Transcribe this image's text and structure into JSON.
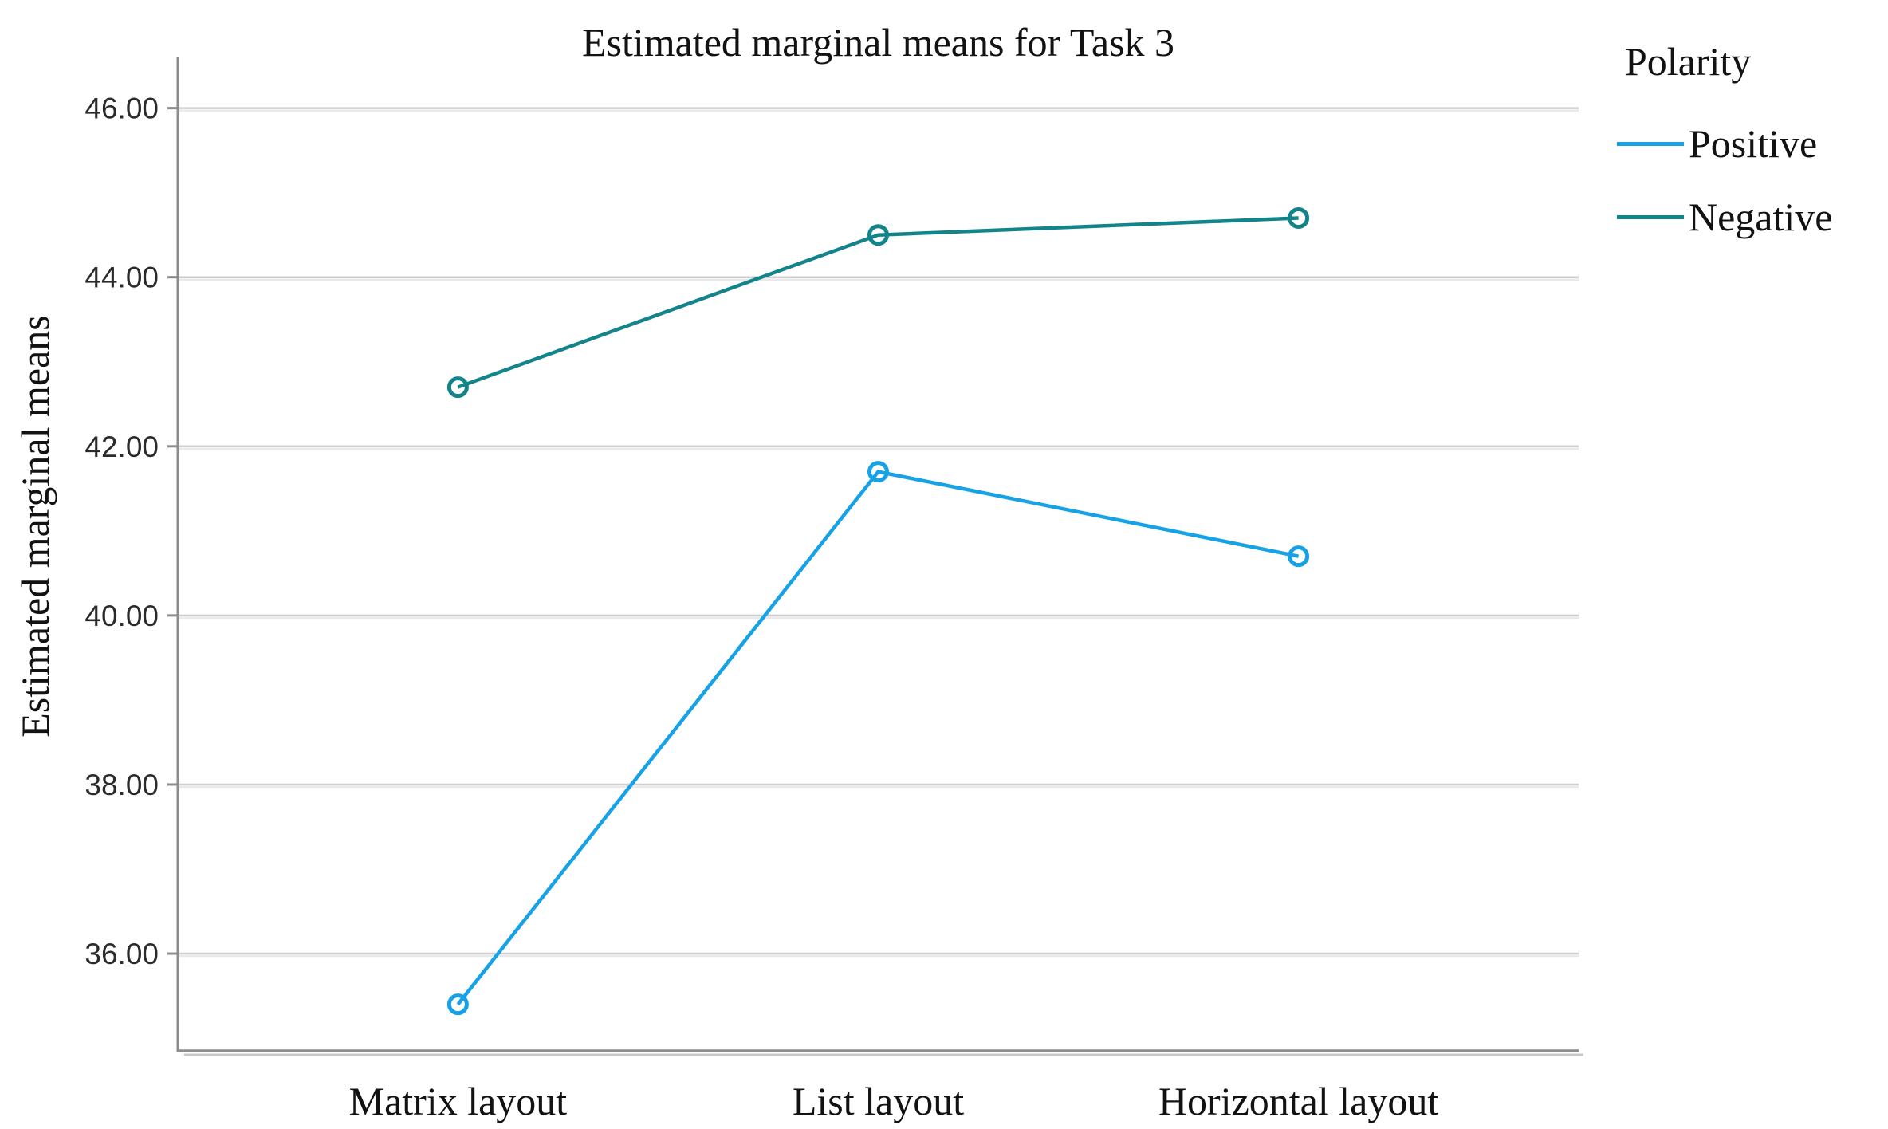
{
  "chart_data": {
    "type": "line",
    "title": "Estimated marginal means for Task 3",
    "ylabel": "Estimated marginal means",
    "xlabel": "",
    "categories": [
      "Matrix layout",
      "List layout",
      "Horizontal layout"
    ],
    "series": [
      {
        "name": "Positive",
        "color": "#17A2E6",
        "values": [
          35.4,
          41.7,
          40.7
        ]
      },
      {
        "name": "Negative",
        "color": "#12848A",
        "values": [
          42.7,
          44.5,
          44.7
        ]
      }
    ],
    "legend": {
      "title": "Polarity",
      "position": "top-right",
      "entries": [
        "Positive",
        "Negative"
      ]
    },
    "ylim": [
      34.85,
      46.6
    ],
    "yticks": [
      36,
      38,
      40,
      42,
      44,
      46
    ],
    "ytick_labels": [
      "36.00",
      "38.00",
      "40.00",
      "42.00",
      "44.00",
      "46.00"
    ],
    "grid": "horizontal",
    "marker": "open-circle"
  },
  "style_colors": {
    "gridline": "#cfcfcf",
    "gridline_shadow": "#e9e9e9",
    "axis": "#8c8c8c",
    "axis_shadow": "#c9c9c9",
    "tick_label_text": "#2b2b2b",
    "category_label_text": "#121212"
  }
}
